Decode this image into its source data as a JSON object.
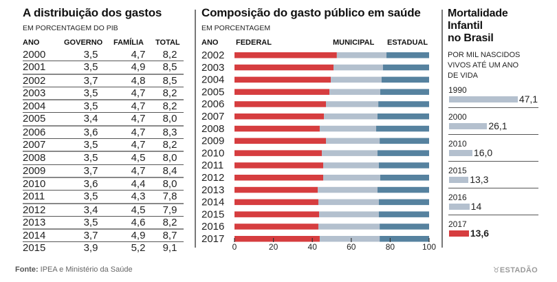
{
  "table_panel": {
    "title": "A distribuição dos gastos",
    "subtitle": "EM PORCENTAGEM  DO PIB",
    "headers": [
      "ANO",
      "GOVERNO",
      "FAMÍLIA",
      "TOTAL"
    ],
    "rows": [
      [
        "2000",
        "3,5",
        "4,7",
        "8,2"
      ],
      [
        "2001",
        "3,5",
        "4,9",
        "8,5"
      ],
      [
        "2002",
        "3,7",
        "4,8",
        "8,5"
      ],
      [
        "2003",
        "3,5",
        "4,7",
        "8,2"
      ],
      [
        "2004",
        "3,5",
        "4,7",
        "8,2"
      ],
      [
        "2005",
        "3,4",
        "4,7",
        "8,0"
      ],
      [
        "2006",
        "3,6",
        "4,7",
        "8,3"
      ],
      [
        "2007",
        "3,5",
        "4,7",
        "8,2"
      ],
      [
        "2008",
        "3,5",
        "4,5",
        "8,0"
      ],
      [
        "2009",
        "3,7",
        "4,7",
        "8,4"
      ],
      [
        "2010",
        "3,6",
        "4,4",
        "8,0"
      ],
      [
        "2011",
        "3,5",
        "4,3",
        "7,8"
      ],
      [
        "2012",
        "3,4",
        "4,5",
        "7,9"
      ],
      [
        "2013",
        "3,5",
        "4,6",
        "8,2"
      ],
      [
        "2014",
        "3,7",
        "4,9",
        "8,7"
      ],
      [
        "2015",
        "3,9",
        "5,2",
        "9,1"
      ]
    ]
  },
  "mortality_panel": {
    "title_lines": [
      "Mortalidade",
      "Infantil",
      "no Brasil"
    ],
    "subtitle_lines": [
      "POR MIL NASCIDOS",
      "VIVOS ATÉ UM ANO",
      "DE VIDA"
    ],
    "items": [
      {
        "year": "1990",
        "value": 47.1,
        "label": "47,1",
        "highlight": false
      },
      {
        "year": "2000",
        "value": 26.1,
        "label": "26,1",
        "highlight": false
      },
      {
        "year": "2010",
        "value": 16.0,
        "label": "16,0",
        "highlight": false
      },
      {
        "year": "2015",
        "value": 13.3,
        "label": "13,3",
        "highlight": false
      },
      {
        "year": "2016",
        "value": 14,
        "label": "14",
        "highlight": false
      },
      {
        "year": "2017",
        "value": 13.6,
        "label": "13,6",
        "highlight": true
      }
    ]
  },
  "colors": {
    "federal": "#d63d3f",
    "municipal": "#b3c0ce",
    "estadual": "#56829f",
    "mortality_bar": "#b4c0ce",
    "mortality_highlight": "#d63d3f"
  },
  "footer": {
    "source_label": "Fonte:",
    "source_text": " IPEA e Ministério da Saúde",
    "brand": "ESTADÃO"
  },
  "chart_data": [
    {
      "type": "bar",
      "orientation": "horizontal",
      "stacked": true,
      "title": "Composição do gasto público em saúde",
      "subtitle": "EM PORCENTAGEM",
      "category_header": "ANO",
      "categories": [
        "2002",
        "2003",
        "2004",
        "2005",
        "2006",
        "2007",
        "2008",
        "2009",
        "2010",
        "2011",
        "2012",
        "2013",
        "2014",
        "2015",
        "2016",
        "2017"
      ],
      "series": [
        {
          "name": "FEDERAL",
          "values": [
            52.6,
            50.9,
            49.5,
            48.8,
            47.0,
            46.0,
            43.8,
            47.0,
            44.9,
            45.6,
            45.6,
            42.8,
            43.1,
            43.5,
            43.1,
            43.8
          ]
        },
        {
          "name": "MUNICIPAL",
          "values": [
            25.5,
            25.4,
            26.1,
            26.1,
            26.9,
            27.5,
            29.0,
            27.6,
            28.6,
            28.6,
            29.3,
            30.7,
            31.1,
            30.7,
            31.5,
            30.8
          ]
        },
        {
          "name": "ESTADUAL",
          "values": [
            21.9,
            23.7,
            24.4,
            25.1,
            26.1,
            26.5,
            27.2,
            25.4,
            26.5,
            25.8,
            25.1,
            26.5,
            25.8,
            25.8,
            25.4,
            25.4
          ]
        }
      ],
      "xlabel": "",
      "ylabel": "",
      "xlim": [
        0,
        100
      ],
      "xticks": [
        0,
        20,
        40,
        60,
        80,
        100
      ],
      "grid": false,
      "legend": "top"
    },
    {
      "type": "bar",
      "orientation": "horizontal",
      "title": "Mortalidade Infantil no Brasil",
      "subtitle": "POR MIL NASCIDOS VIVOS ATÉ UM ANO DE VIDA",
      "categories": [
        "1990",
        "2000",
        "2010",
        "2015",
        "2016",
        "2017"
      ],
      "values": [
        47.1,
        26.1,
        16.0,
        13.3,
        14,
        13.6
      ],
      "highlight": "2017"
    }
  ]
}
